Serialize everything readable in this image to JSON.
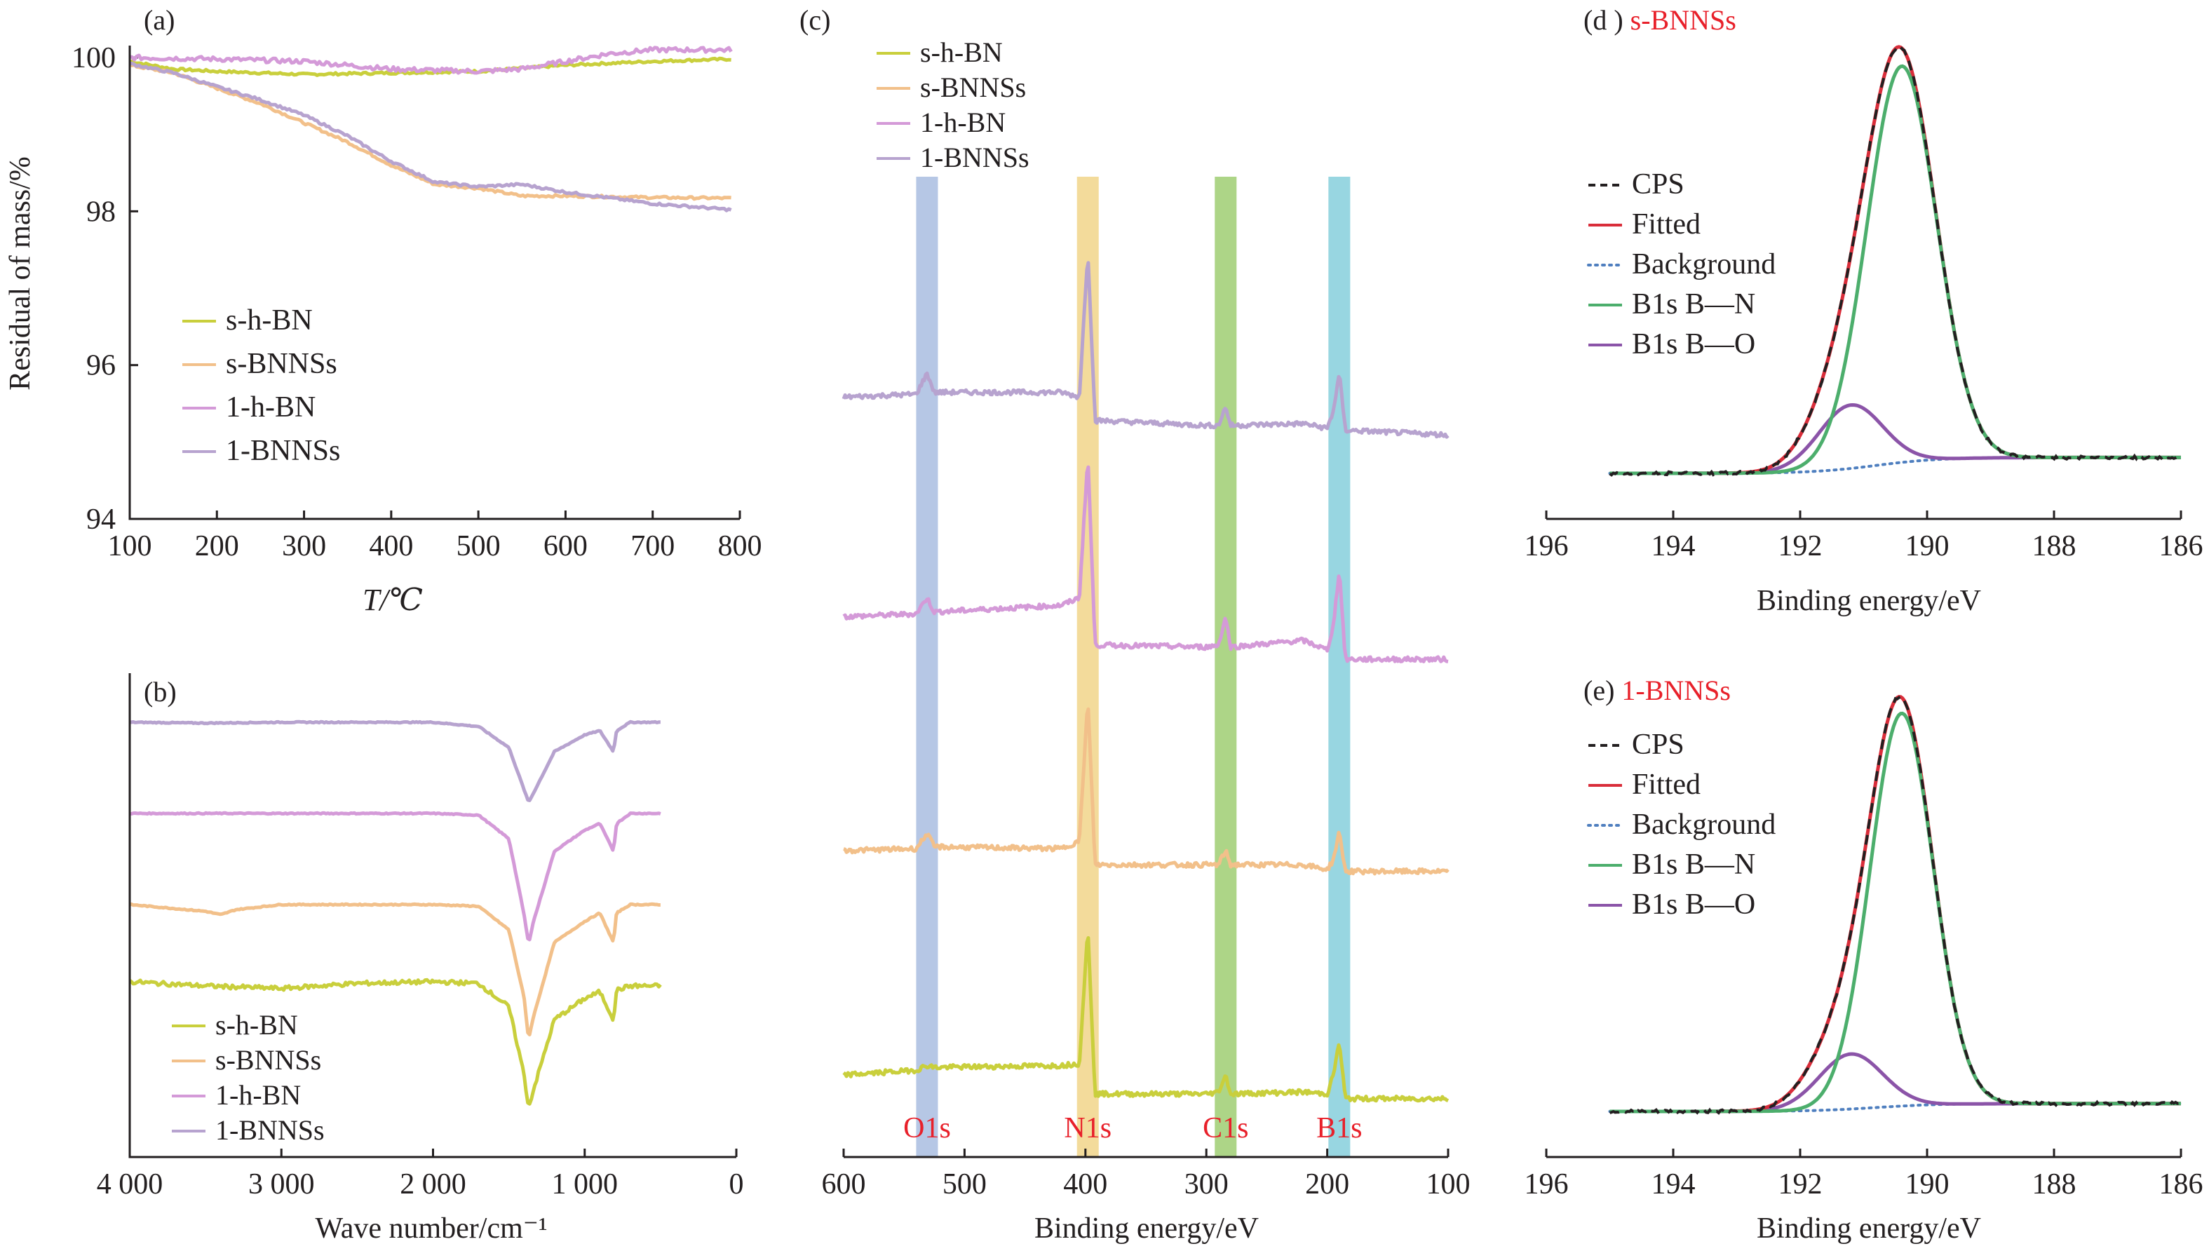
{
  "colors": {
    "s_h_BN": "#c9cf3c",
    "s_BNNSs": "#f2c08a",
    "l_h_BN": "#d49ad8",
    "l_BNNSs": "#b7a3cf",
    "CPS": "#231f20",
    "Fitted": "#d92d3a",
    "Background": "#4f7fbf",
    "BN": "#4cae6c",
    "BO": "#8b54a8",
    "band_O": "#a9bde0",
    "band_N": "#f1d58a",
    "band_C": "#9fce72",
    "band_B": "#86cfdc",
    "label_red": "#e8202a"
  },
  "chart_data": [
    {
      "id": "a",
      "type": "line",
      "panel_label": "(a)",
      "xlabel": "T/℃",
      "ylabel": "Residual of mass/%",
      "xlim": [
        100,
        800
      ],
      "ylim": [
        94,
        100.2
      ],
      "xticks": [
        "100",
        "200",
        "300",
        "400",
        "500",
        "600",
        "700",
        "800"
      ],
      "yticks": [
        "94",
        "96",
        "98",
        "100"
      ],
      "legend": [
        "s-h-BN",
        "s-BNNSs",
        "1-h-BN",
        "1-BNNSs"
      ],
      "series": [
        {
          "name": "s-h-BN",
          "x": [
            100,
            150,
            200,
            300,
            400,
            500,
            600,
            700,
            790
          ],
          "y": [
            99.95,
            99.85,
            99.82,
            99.78,
            99.8,
            99.82,
            99.9,
            99.95,
            99.98
          ]
        },
        {
          "name": "s-BNNSs",
          "x": [
            100,
            150,
            200,
            250,
            300,
            350,
            400,
            450,
            500,
            550,
            600,
            700,
            790
          ],
          "y": [
            99.9,
            99.8,
            99.6,
            99.4,
            99.15,
            98.9,
            98.6,
            98.35,
            98.3,
            98.2,
            98.2,
            98.18,
            98.17
          ]
        },
        {
          "name": "1-h-BN",
          "x": [
            100,
            200,
            300,
            400,
            500,
            550,
            600,
            650,
            700,
            790
          ],
          "y": [
            100.0,
            99.98,
            99.95,
            99.85,
            99.82,
            99.85,
            99.95,
            100.05,
            100.1,
            100.1
          ]
        },
        {
          "name": "1-BNNSs",
          "x": [
            100,
            150,
            200,
            250,
            300,
            350,
            400,
            450,
            500,
            550,
            600,
            700,
            790
          ],
          "y": [
            99.92,
            99.8,
            99.62,
            99.45,
            99.25,
            98.98,
            98.65,
            98.38,
            98.32,
            98.35,
            98.25,
            98.1,
            98.02
          ]
        }
      ]
    },
    {
      "id": "b",
      "type": "line",
      "panel_label": "(b)",
      "xlabel": "Wave number/cm⁻¹",
      "xlim": [
        4000,
        0
      ],
      "xticks": [
        "4 000",
        "3 000",
        "2 000",
        "1 000",
        "0"
      ],
      "legend": [
        "s-h-BN",
        "s-BNNSs",
        "1-h-BN",
        "1-BNNSs"
      ],
      "series": [
        {
          "name": "1-BNNSs",
          "offset": 3,
          "x": [
            4000,
            3500,
            3000,
            2500,
            2000,
            1700,
            1500,
            1400,
            1370,
            1340,
            1200,
            1000,
            900,
            810,
            790,
            700,
            500
          ],
          "y": [
            0,
            -0.01,
            0,
            0,
            0,
            -0.05,
            -0.3,
            -0.8,
            -0.95,
            -0.85,
            -0.35,
            -0.15,
            -0.1,
            -0.35,
            -0.1,
            0,
            0
          ]
        },
        {
          "name": "1-h-BN",
          "offset": 2,
          "x": [
            4000,
            3000,
            2000,
            1700,
            1500,
            1400,
            1370,
            1340,
            1200,
            1000,
            900,
            810,
            790,
            700,
            500
          ],
          "y": [
            0,
            0,
            0,
            -0.02,
            -0.3,
            -1.2,
            -1.55,
            -1.3,
            -0.45,
            -0.2,
            -0.12,
            -0.45,
            -0.12,
            0,
            0
          ]
        },
        {
          "name": "s-BNNSs",
          "offset": 1,
          "x": [
            4000,
            3500,
            3400,
            3300,
            3000,
            2000,
            1700,
            1500,
            1400,
            1370,
            1340,
            1200,
            1000,
            900,
            810,
            790,
            700,
            500
          ],
          "y": [
            0,
            -0.08,
            -0.12,
            -0.06,
            0,
            0,
            -0.02,
            -0.3,
            -1.1,
            -1.6,
            -1.35,
            -0.45,
            -0.2,
            -0.1,
            -0.45,
            -0.1,
            0,
            0
          ]
        },
        {
          "name": "s-h-BN",
          "offset": 0,
          "x": [
            4000,
            3500,
            3000,
            2500,
            2000,
            1700,
            1500,
            1400,
            1370,
            1340,
            1200,
            1000,
            900,
            810,
            790,
            700,
            500
          ],
          "y": [
            0,
            -0.05,
            -0.08,
            -0.02,
            0,
            -0.02,
            -0.3,
            -1.1,
            -1.5,
            -1.3,
            -0.45,
            -0.2,
            -0.12,
            -0.45,
            -0.1,
            -0.05,
            -0.05
          ]
        }
      ]
    },
    {
      "id": "c",
      "type": "line",
      "panel_label": "(c)",
      "xlabel": "Binding energy/eV",
      "xlim": [
        600,
        100
      ],
      "xticks": [
        "600",
        "500",
        "400",
        "300",
        "200",
        "100"
      ],
      "legend": [
        "s-h-BN",
        "s-BNNSs",
        "1-h-BN",
        "1-BNNSs"
      ],
      "bands": [
        {
          "label": "O1s",
          "center": 531,
          "width": 18
        },
        {
          "label": "N1s",
          "center": 398,
          "width": 18
        },
        {
          "label": "C1s",
          "center": 284,
          "width": 18
        },
        {
          "label": "B1s",
          "center": 190,
          "width": 18
        }
      ],
      "series": [
        {
          "name": "1-BNNSs",
          "offset": 3,
          "x": [
            600,
            540,
            531,
            525,
            420,
            405,
            398,
            392,
            385,
            300,
            290,
            284,
            280,
            220,
            200,
            195,
            190,
            185,
            100
          ],
          "y": [
            0.25,
            0.28,
            0.5,
            0.3,
            0.3,
            0.25,
            1.8,
            0.0,
            0.0,
            -0.05,
            -0.05,
            0.15,
            -0.05,
            -0.03,
            -0.08,
            0.1,
            0.5,
            -0.1,
            -0.15
          ]
        },
        {
          "name": "1-h-BN",
          "offset": 2,
          "x": [
            600,
            540,
            531,
            525,
            420,
            405,
            398,
            392,
            385,
            300,
            290,
            284,
            280,
            220,
            200,
            195,
            190,
            185,
            100
          ],
          "y": [
            0.3,
            0.33,
            0.5,
            0.35,
            0.42,
            0.5,
            2.0,
            0.0,
            0.0,
            -0.02,
            0.0,
            0.3,
            -0.02,
            0.05,
            -0.05,
            0.2,
            0.8,
            -0.15,
            -0.15
          ]
        },
        {
          "name": "s-BNNSs",
          "offset": 1,
          "x": [
            600,
            540,
            531,
            525,
            420,
            405,
            398,
            392,
            385,
            300,
            290,
            284,
            280,
            220,
            200,
            195,
            190,
            185,
            100
          ],
          "y": [
            0.2,
            0.22,
            0.38,
            0.24,
            0.22,
            0.3,
            1.8,
            0.05,
            0.05,
            0.05,
            0.05,
            0.2,
            0.05,
            0.05,
            0.0,
            0.1,
            0.4,
            -0.02,
            -0.02
          ]
        },
        {
          "name": "s-h-BN",
          "offset": 0,
          "x": [
            600,
            540,
            531,
            525,
            420,
            405,
            398,
            392,
            385,
            300,
            290,
            284,
            280,
            220,
            200,
            195,
            190,
            185,
            100
          ],
          "y": [
            0.2,
            0.25,
            0.3,
            0.28,
            0.3,
            0.32,
            1.75,
            0.0,
            0.0,
            0.0,
            0.02,
            0.2,
            0.0,
            0.02,
            0.0,
            0.2,
            0.55,
            -0.05,
            -0.05
          ]
        }
      ],
      "band_labels": [
        "O1s",
        "N1s",
        "C1s",
        "B1s"
      ]
    },
    {
      "id": "d",
      "type": "line",
      "panel_label": "(d )",
      "panel_title": "s-BNNSs",
      "xlabel": "Binding energy/eV",
      "xlim": [
        196,
        186
      ],
      "xticks": [
        "196",
        "194",
        "192",
        "190",
        "188",
        "186"
      ],
      "legend": [
        "CPS",
        "Fitted",
        "Background",
        "B1s B—N",
        "B1s B—O"
      ],
      "peaks": {
        "BN_center": 190.4,
        "BN_sigma": 0.55,
        "BN_height": 1.0,
        "BO_center": 191.2,
        "BO_sigma": 0.5,
        "BO_height": 0.16
      },
      "baseline": {
        "left": 0.04,
        "right": 0.0
      }
    },
    {
      "id": "e",
      "type": "line",
      "panel_label": "(e)",
      "panel_title": "1-BNNSs",
      "xlabel": "Binding energy/eV",
      "xlim": [
        196,
        186
      ],
      "xticks": [
        "196",
        "194",
        "192",
        "190",
        "188",
        "186"
      ],
      "legend": [
        "CPS",
        "Fitted",
        "Background",
        "B1s B—N",
        "B1s B—O"
      ],
      "peaks": {
        "BN_center": 190.4,
        "BN_sigma": 0.5,
        "BN_height": 1.0,
        "BO_center": 191.2,
        "BO_sigma": 0.5,
        "BO_height": 0.14
      },
      "baseline": {
        "left": 0.02,
        "right": 0.0
      }
    }
  ]
}
